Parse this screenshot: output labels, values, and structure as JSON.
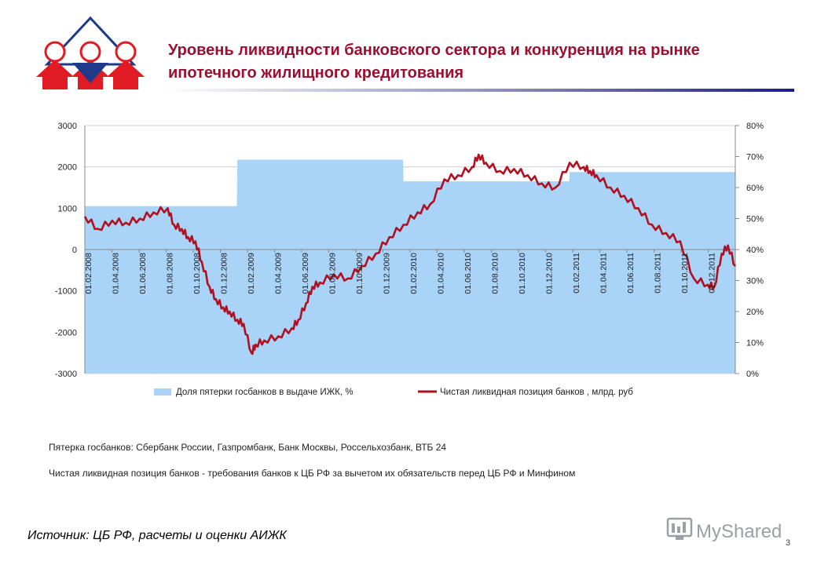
{
  "slide": {
    "title": "Уровень ликвидности банковского сектора и конкуренция на рынке ипотечного жилищного кредитования",
    "note1": "Пятерка госбанков:  Сбербанк России, Газпромбанк, Банк Москвы, Россельхозбанк,  ВТБ 24",
    "note2": "Чистая ликвидная позиция  банков  - требования банков к ЦБ РФ за вычетом их обязательств перед ЦБ РФ и Минфином",
    "source": "Источник: ЦБ РФ, расчеты и оценки АИЖК",
    "watermark": "MyShared",
    "page_number": "3",
    "title_color": "#9b1030"
  },
  "chart_data": {
    "type": "area",
    "title": "",
    "x_range": [
      "2008-02-01",
      "2011-12-31"
    ],
    "x_tick_labels": [
      "01.02.2008",
      "01.04.2008",
      "01.06.2008",
      "01.08.2008",
      "01.10.2008",
      "01.12.2008",
      "01.02.2009",
      "01.04.2009",
      "01.06.2009",
      "01.08.2009",
      "01.10.2009",
      "01.12.2009",
      "01.02.2010",
      "01.04.2010",
      "01.06.2010",
      "01.08.2010",
      "01.10.2010",
      "01.12.2010",
      "01.02.2011",
      "01.04.2011",
      "01.06.2011",
      "01.08.2011",
      "01.10.2011",
      "01.12.2011"
    ],
    "y_left": {
      "range": [
        -3000,
        3000
      ],
      "ticks": [
        "3000",
        "2000",
        "1000",
        "0",
        "-1000",
        "-2000",
        "-3000"
      ]
    },
    "y_right": {
      "range": [
        0,
        80
      ],
      "ticks": [
        "80%",
        "70%",
        "60%",
        "50%",
        "40%",
        "30%",
        "20%",
        "10%",
        "0%"
      ]
    },
    "legend_position": "bottom",
    "grid": "horizontal",
    "series": [
      {
        "name": "Доля пятерки госбанков в выдаче ИЖК, %",
        "chart": "area",
        "axis": "right",
        "color": "#a9d4f8",
        "x": [
          "2008-02-01",
          "2008-12-31",
          "2009-01-01",
          "2009-12-31",
          "2010-01-01",
          "2010-12-31",
          "2011-01-01",
          "2011-12-31"
        ],
        "y": [
          54,
          54,
          69,
          69,
          62,
          62,
          65,
          65
        ]
      },
      {
        "name": "Чистая ликвидная позиция банков , млрд. руб",
        "chart": "line",
        "axis": "left",
        "color": "#b01020",
        "x": [
          "2008-02-01",
          "2008-03-01",
          "2008-04-01",
          "2008-05-01",
          "2008-06-01",
          "2008-07-01",
          "2008-08-01",
          "2008-08-15",
          "2008-09-01",
          "2008-09-15",
          "2008-10-01",
          "2008-10-15",
          "2008-11-01",
          "2008-11-15",
          "2008-12-01",
          "2008-12-15",
          "2009-01-01",
          "2009-01-15",
          "2009-02-01",
          "2009-02-10",
          "2009-03-01",
          "2009-04-01",
          "2009-05-01",
          "2009-05-15",
          "2009-06-01",
          "2009-06-15",
          "2009-07-01",
          "2009-08-01",
          "2009-09-01",
          "2009-10-01",
          "2009-11-01",
          "2009-12-01",
          "2010-01-01",
          "2010-02-01",
          "2010-03-01",
          "2010-04-01",
          "2010-05-01",
          "2010-06-01",
          "2010-06-15",
          "2010-07-01",
          "2010-08-01",
          "2010-09-01",
          "2010-10-01",
          "2010-11-01",
          "2010-12-01",
          "2011-01-01",
          "2011-02-01",
          "2011-02-15",
          "2011-03-01",
          "2011-04-01",
          "2011-05-01",
          "2011-06-01",
          "2011-07-01",
          "2011-08-01",
          "2011-09-01",
          "2011-10-01",
          "2011-11-01",
          "2011-11-15",
          "2011-12-01",
          "2011-12-15",
          "2011-12-31"
        ],
        "y": [
          800,
          500,
          700,
          650,
          750,
          900,
          1000,
          600,
          500,
          300,
          200,
          -300,
          -900,
          -1200,
          -1400,
          -1500,
          -1700,
          -1800,
          -2500,
          -2300,
          -2200,
          -2100,
          -1900,
          -1700,
          -1300,
          -900,
          -800,
          -600,
          -700,
          -400,
          -100,
          300,
          600,
          900,
          1100,
          1700,
          1800,
          2000,
          2300,
          2100,
          1900,
          1950,
          1800,
          1600,
          1500,
          2100,
          2000,
          1900,
          1800,
          1500,
          1300,
          1000,
          600,
          400,
          200,
          -700,
          -850,
          -900,
          -100,
          100,
          -400
        ]
      }
    ]
  }
}
